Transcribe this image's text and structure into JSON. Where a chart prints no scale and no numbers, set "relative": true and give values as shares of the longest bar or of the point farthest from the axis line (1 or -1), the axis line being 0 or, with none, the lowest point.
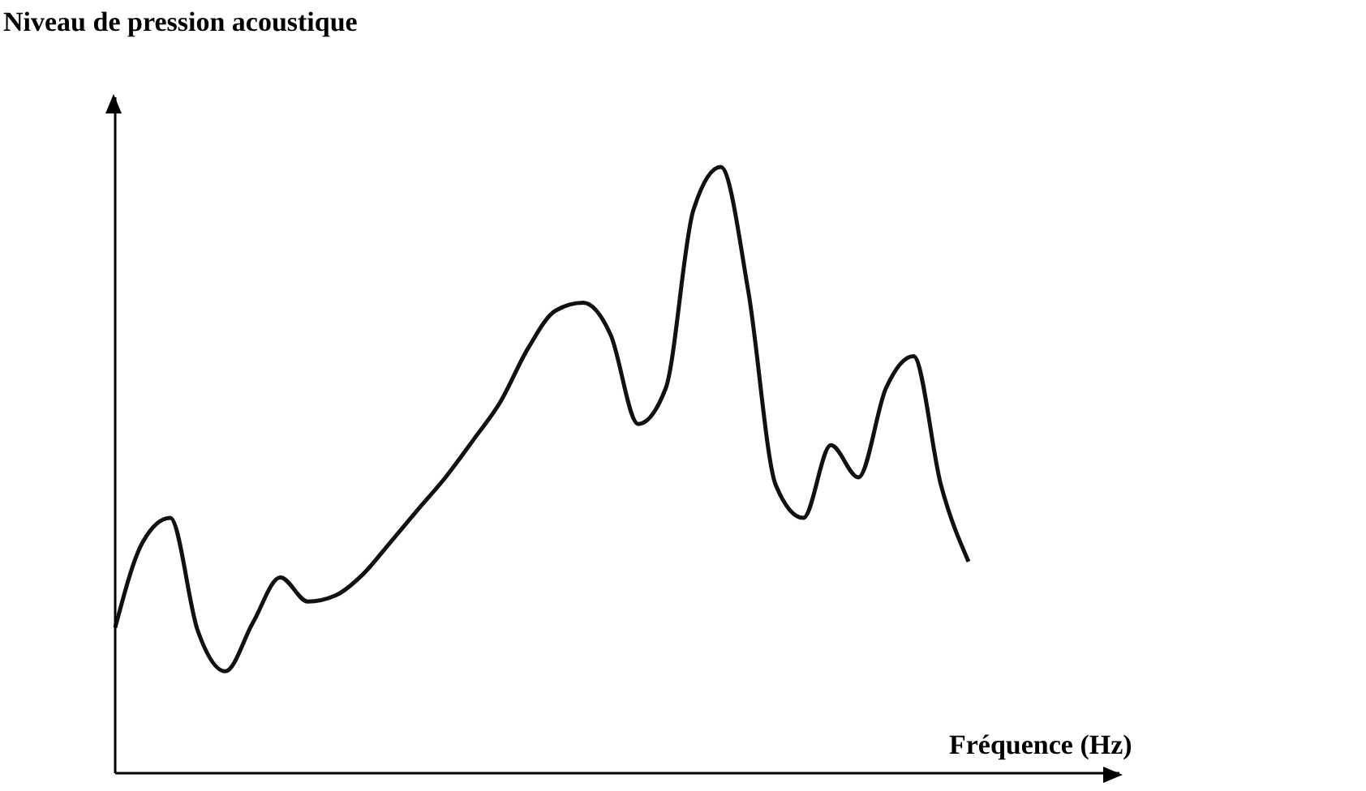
{
  "chart_data": {
    "type": "line",
    "title": "Niveau de pression acoustique",
    "xlabel": "Fréquence (Hz)",
    "relative": true,
    "marker": "none",
    "categories": [
      null,
      null,
      null,
      null,
      null,
      null,
      null,
      null,
      null,
      null,
      null,
      null,
      null,
      null,
      null,
      null,
      null,
      null,
      null,
      null,
      null,
      null,
      null,
      null,
      null,
      null,
      null,
      null,
      null,
      null,
      null,
      null
    ],
    "series": [
      {
        "color": "#111111",
        "values": [
          0.24,
          0.381,
          0.421,
          0.235,
          0.168,
          0.248,
          0.323,
          0.283,
          0.293,
          0.328,
          0.381,
          0.435,
          0.488,
          0.549,
          0.613,
          0.701,
          0.763,
          0.776,
          0.723,
          0.576,
          0.635,
          0.928,
          1,
          0.795,
          0.475,
          0.421,
          0.541,
          0.488,
          0.635,
          0.688,
          0.475,
          0.349
        ]
      }
    ]
  }
}
